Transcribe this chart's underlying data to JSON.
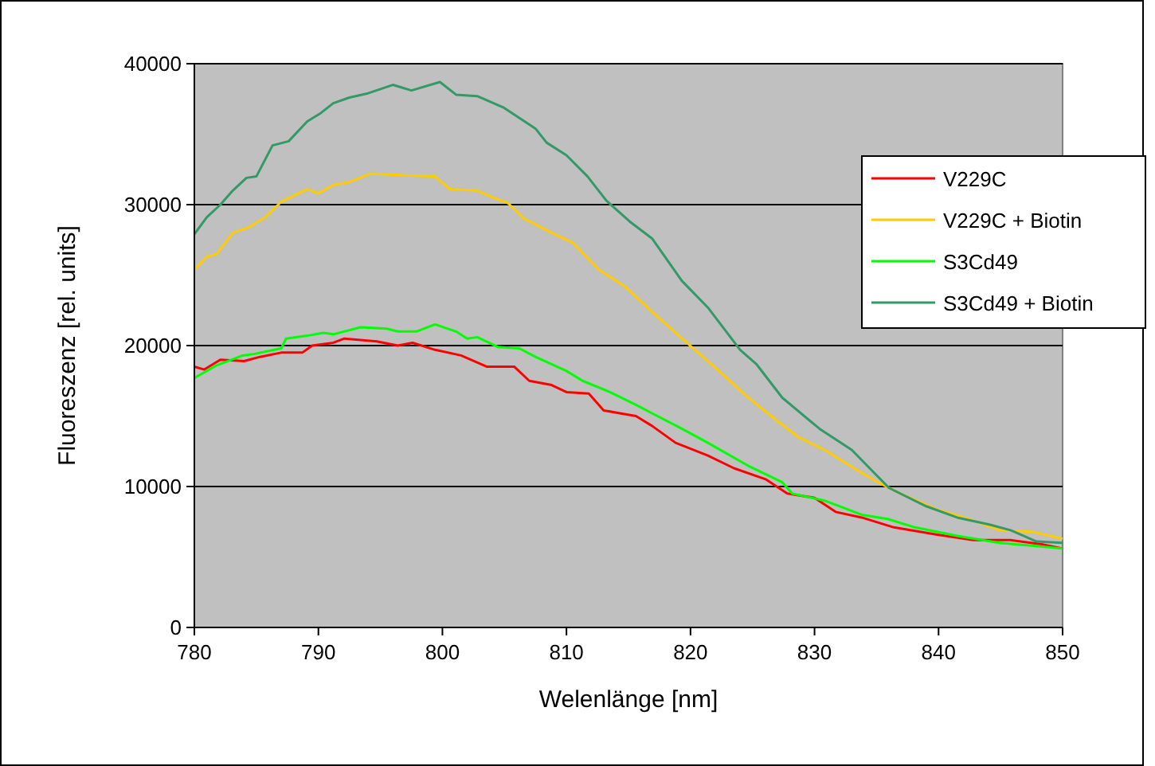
{
  "chart_data": {
    "type": "line",
    "xlabel": "Welenlänge [nm]",
    "ylabel": "Fluoreszenz [rel. units]",
    "xlim": [
      780,
      850
    ],
    "xticks": [
      780,
      790,
      800,
      810,
      820,
      830,
      840,
      850
    ],
    "ylim": [
      0,
      40000
    ],
    "yticks": [
      0,
      10000,
      20000,
      30000,
      40000
    ],
    "grid": "y",
    "legend": "right",
    "marker": "none",
    "line_style": "solid",
    "series": [
      {
        "name": "V229C",
        "color": "#ff0000",
        "x": [
          780,
          780.8,
          782.1,
          784,
          785.3,
          787,
          788.7,
          789.5,
          791.2,
          792.1,
          794.7,
          796.4,
          797.6,
          799.4,
          801.5,
          803.6,
          805.8,
          807,
          808.8,
          810,
          811.8,
          813,
          814.3,
          815.6,
          816.9,
          818.8,
          821.4,
          823.5,
          826.1,
          827.8,
          830,
          831.7,
          833.8,
          836.4,
          839.8,
          842.8,
          845.8,
          848.3,
          850
        ],
        "values": [
          18500,
          18300,
          19000,
          18900,
          19200,
          19500,
          19500,
          20000,
          20200,
          20500,
          20300,
          20000,
          20200,
          19700,
          19300,
          18500,
          18500,
          17500,
          17200,
          16700,
          16600,
          15400,
          15200,
          15000,
          14300,
          13100,
          12200,
          11300,
          10500,
          9500,
          9200,
          8200,
          7800,
          7100,
          6600,
          6200,
          6200,
          5900,
          5600
        ]
      },
      {
        "name": "V229C + Biotin",
        "color": "#ffcc00",
        "x": [
          780,
          781,
          781.8,
          783.1,
          784.4,
          785.7,
          787,
          789.1,
          790,
          791.2,
          792.5,
          794.2,
          796.4,
          799.4,
          800.6,
          802.8,
          804.1,
          805.3,
          806.6,
          808.8,
          810.5,
          812.6,
          814.7,
          816.9,
          820.1,
          822.3,
          824.4,
          826.5,
          828.7,
          830.8,
          833,
          835.1,
          837.2,
          839.8,
          842.4,
          844.9,
          847.5,
          850
        ],
        "values": [
          25400,
          26300,
          26500,
          28000,
          28400,
          29100,
          30200,
          31100,
          30800,
          31400,
          31600,
          32200,
          32100,
          32000,
          31100,
          31000,
          30500,
          30100,
          29000,
          28000,
          27300,
          25400,
          24200,
          22400,
          19900,
          18200,
          16500,
          15000,
          13500,
          12600,
          11400,
          10300,
          9400,
          8400,
          7700,
          6900,
          6800,
          6300
        ]
      },
      {
        "name": "S3Cd49",
        "color": "#00ff00",
        "x": [
          780,
          781.8,
          783.9,
          784.8,
          787,
          787.4,
          789.1,
          790.4,
          791.2,
          793.4,
          795.5,
          796.4,
          797.9,
          799.4,
          801.1,
          802,
          802.8,
          804.5,
          806.2,
          807.5,
          810,
          811.3,
          813.5,
          815.6,
          816.9,
          819.3,
          821.4,
          824.8,
          827.4,
          828.2,
          830.8,
          833.8,
          835.9,
          838.1,
          841.5,
          844.9,
          847.5,
          850
        ],
        "values": [
          17700,
          18600,
          19300,
          19400,
          19800,
          20500,
          20700,
          20900,
          20800,
          21300,
          21200,
          21000,
          21000,
          21500,
          21000,
          20500,
          20600,
          19900,
          19800,
          19200,
          18200,
          17500,
          16700,
          15800,
          15200,
          14100,
          13100,
          11400,
          10300,
          9500,
          9000,
          8000,
          7700,
          7100,
          6500,
          6000,
          5800,
          5600
        ]
      },
      {
        "name": "S3Cd49 + Biotin",
        "color": "#339966",
        "x": [
          780,
          781,
          782.1,
          783.1,
          784.2,
          785,
          786.3,
          787.6,
          789.1,
          790.2,
          791.2,
          792.5,
          794,
          796,
          797.5,
          799.8,
          801.1,
          802.8,
          804.9,
          807.5,
          808.4,
          810,
          811.7,
          813.2,
          815.1,
          816.9,
          819.3,
          821.4,
          824,
          825.3,
          827.4,
          830.4,
          833,
          836,
          839,
          841.5,
          844.1,
          845.8,
          847.9,
          850
        ],
        "values": [
          27900,
          29100,
          30000,
          31000,
          31900,
          32000,
          34200,
          34500,
          35900,
          36500,
          37200,
          37600,
          37900,
          38500,
          38100,
          38700,
          37800,
          37700,
          36900,
          35400,
          34400,
          33500,
          32000,
          30300,
          28800,
          27600,
          24600,
          22700,
          19700,
          18700,
          16300,
          14100,
          12600,
          9900,
          8600,
          7800,
          7300,
          6900,
          6100,
          6000
        ]
      }
    ]
  }
}
